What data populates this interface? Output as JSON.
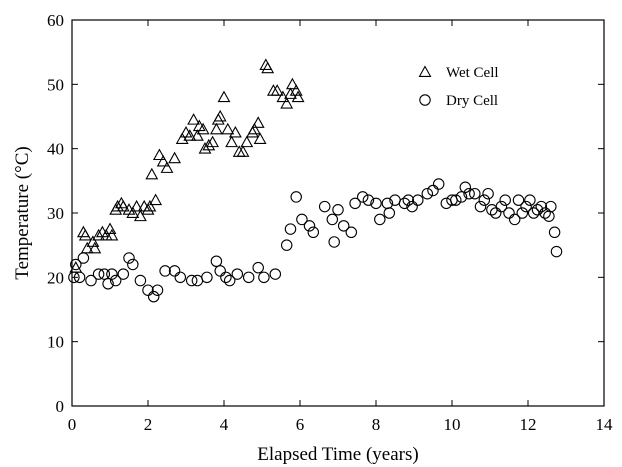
{
  "chart_data": {
    "type": "scatter",
    "xlabel": "Elapsed Time (years)",
    "ylabel": "Temperature (°C)",
    "xlim": [
      0,
      14
    ],
    "ylim": [
      0,
      60
    ],
    "xticks": [
      0,
      2,
      4,
      6,
      8,
      10,
      12,
      14
    ],
    "yticks": [
      0,
      10,
      20,
      30,
      40,
      50,
      60
    ],
    "grid": false,
    "legend_position": "top-right",
    "series": [
      {
        "name": "Wet Cell",
        "marker": "triangle",
        "color": "#000000",
        "points": [
          [
            0.1,
            21.5
          ],
          [
            0.3,
            27
          ],
          [
            0.35,
            26.5
          ],
          [
            0.4,
            24.5
          ],
          [
            0.55,
            25.5
          ],
          [
            0.6,
            24.5
          ],
          [
            0.7,
            26.5
          ],
          [
            0.8,
            27
          ],
          [
            0.9,
            26.5
          ],
          [
            1.0,
            27.5
          ],
          [
            1.05,
            26.5
          ],
          [
            1.15,
            30.5
          ],
          [
            1.2,
            31
          ],
          [
            1.3,
            31.5
          ],
          [
            1.35,
            31
          ],
          [
            1.5,
            30.5
          ],
          [
            1.6,
            30
          ],
          [
            1.7,
            31
          ],
          [
            1.8,
            29.5
          ],
          [
            1.9,
            31
          ],
          [
            2.0,
            30.5
          ],
          [
            2.05,
            31
          ],
          [
            2.1,
            36
          ],
          [
            2.2,
            32
          ],
          [
            2.3,
            39
          ],
          [
            2.4,
            38
          ],
          [
            2.5,
            37
          ],
          [
            2.7,
            38.5
          ],
          [
            2.9,
            41.5
          ],
          [
            3.0,
            42.5
          ],
          [
            3.1,
            42
          ],
          [
            3.2,
            44.5
          ],
          [
            3.3,
            42
          ],
          [
            3.35,
            43.5
          ],
          [
            3.45,
            43
          ],
          [
            3.5,
            40
          ],
          [
            3.6,
            40.5
          ],
          [
            3.7,
            41
          ],
          [
            3.8,
            43
          ],
          [
            3.85,
            44.5
          ],
          [
            3.9,
            45
          ],
          [
            4.0,
            48
          ],
          [
            4.1,
            43
          ],
          [
            4.2,
            41
          ],
          [
            4.3,
            42.5
          ],
          [
            4.4,
            39.5
          ],
          [
            4.5,
            39.5
          ],
          [
            4.6,
            41
          ],
          [
            4.75,
            42.5
          ],
          [
            4.8,
            43
          ],
          [
            4.9,
            44
          ],
          [
            4.95,
            41.5
          ],
          [
            5.1,
            53
          ],
          [
            5.15,
            52.5
          ],
          [
            5.3,
            49
          ],
          [
            5.4,
            49
          ],
          [
            5.55,
            48
          ],
          [
            5.65,
            47
          ],
          [
            5.75,
            48.5
          ],
          [
            5.8,
            50
          ],
          [
            5.9,
            49
          ],
          [
            5.95,
            48
          ]
        ]
      },
      {
        "name": "Dry Cell",
        "marker": "circle",
        "color": "#000000",
        "points": [
          [
            0.05,
            20
          ],
          [
            0.1,
            22
          ],
          [
            0.2,
            20
          ],
          [
            0.3,
            23
          ],
          [
            0.5,
            19.5
          ],
          [
            0.7,
            20.5
          ],
          [
            0.85,
            20.5
          ],
          [
            0.95,
            19
          ],
          [
            1.05,
            20.5
          ],
          [
            1.15,
            19.5
          ],
          [
            1.35,
            20.5
          ],
          [
            1.5,
            23
          ],
          [
            1.6,
            22
          ],
          [
            1.8,
            19.5
          ],
          [
            2.0,
            18
          ],
          [
            2.15,
            17
          ],
          [
            2.25,
            18
          ],
          [
            2.45,
            21
          ],
          [
            2.7,
            21
          ],
          [
            2.85,
            20
          ],
          [
            3.15,
            19.5
          ],
          [
            3.3,
            19.5
          ],
          [
            3.55,
            20
          ],
          [
            3.8,
            22.5
          ],
          [
            3.9,
            21
          ],
          [
            4.05,
            20
          ],
          [
            4.15,
            19.5
          ],
          [
            4.35,
            20.5
          ],
          [
            4.65,
            20
          ],
          [
            4.9,
            21.5
          ],
          [
            5.05,
            20
          ],
          [
            5.35,
            20.5
          ],
          [
            5.65,
            25
          ],
          [
            5.75,
            27.5
          ],
          [
            5.9,
            32.5
          ],
          [
            6.05,
            29
          ],
          [
            6.25,
            28
          ],
          [
            6.35,
            27
          ],
          [
            6.65,
            31
          ],
          [
            6.85,
            29
          ],
          [
            6.9,
            25.5
          ],
          [
            7.0,
            30.5
          ],
          [
            7.15,
            28
          ],
          [
            7.35,
            27
          ],
          [
            7.45,
            31.5
          ],
          [
            7.65,
            32.5
          ],
          [
            7.8,
            32
          ],
          [
            8.0,
            31.5
          ],
          [
            8.1,
            29
          ],
          [
            8.3,
            31.5
          ],
          [
            8.35,
            30
          ],
          [
            8.5,
            32
          ],
          [
            8.75,
            31.5
          ],
          [
            8.85,
            32
          ],
          [
            8.95,
            31
          ],
          [
            9.1,
            32
          ],
          [
            9.35,
            33
          ],
          [
            9.5,
            33.5
          ],
          [
            9.65,
            34.5
          ],
          [
            9.85,
            31.5
          ],
          [
            10.0,
            32
          ],
          [
            10.1,
            32
          ],
          [
            10.25,
            32.5
          ],
          [
            10.35,
            34
          ],
          [
            10.45,
            33
          ],
          [
            10.6,
            33
          ],
          [
            10.75,
            31
          ],
          [
            10.85,
            32
          ],
          [
            10.95,
            33
          ],
          [
            11.05,
            30.5
          ],
          [
            11.15,
            30
          ],
          [
            11.3,
            31
          ],
          [
            11.4,
            32
          ],
          [
            11.5,
            30
          ],
          [
            11.65,
            29
          ],
          [
            11.75,
            32
          ],
          [
            11.85,
            30
          ],
          [
            11.95,
            31
          ],
          [
            12.05,
            32
          ],
          [
            12.15,
            30
          ],
          [
            12.25,
            30.5
          ],
          [
            12.35,
            31
          ],
          [
            12.45,
            30
          ],
          [
            12.55,
            29.5
          ],
          [
            12.6,
            31
          ],
          [
            12.7,
            27
          ],
          [
            12.75,
            24
          ]
        ]
      }
    ]
  }
}
